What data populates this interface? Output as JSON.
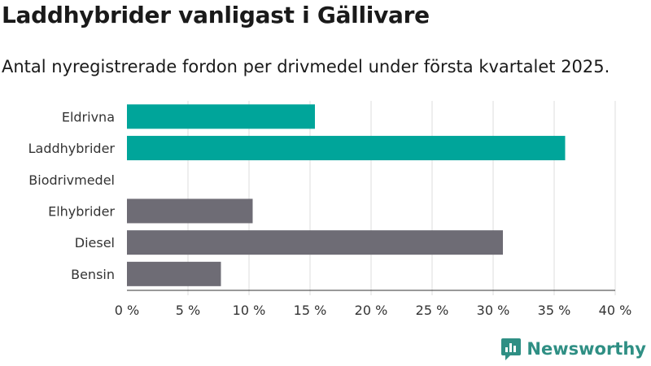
{
  "chart_data": {
    "type": "bar",
    "orientation": "horizontal",
    "title": "Laddhybrider vanligast i Gällivare",
    "subtitle": "Antal nyregistrerade fordon per drivmedel under första kvartalet 2025.",
    "xlabel": "",
    "ylabel": "",
    "categories": [
      "Eldrivna",
      "Laddhybrider",
      "Biodrivmedel",
      "Elhybrider",
      "Diesel",
      "Bensin"
    ],
    "values": [
      15.4,
      35.9,
      0,
      10.3,
      30.8,
      7.7
    ],
    "bar_colors": [
      "#00a59a",
      "#00a59a",
      "#00a59a",
      "#6e6c75",
      "#6e6c75",
      "#6e6c75"
    ],
    "xlim": [
      0,
      40
    ],
    "xticks": [
      0,
      5,
      10,
      15,
      20,
      25,
      30,
      35,
      40
    ],
    "xtick_labels": [
      "0 %",
      "5 %",
      "10 %",
      "15 %",
      "20 %",
      "25 %",
      "30 %",
      "35 %",
      "40 %"
    ],
    "grid": true,
    "legend": "none"
  },
  "brand": {
    "name": "Newsworthy",
    "icon": "newsworthy-logo-icon",
    "color": "#2f8f84"
  }
}
